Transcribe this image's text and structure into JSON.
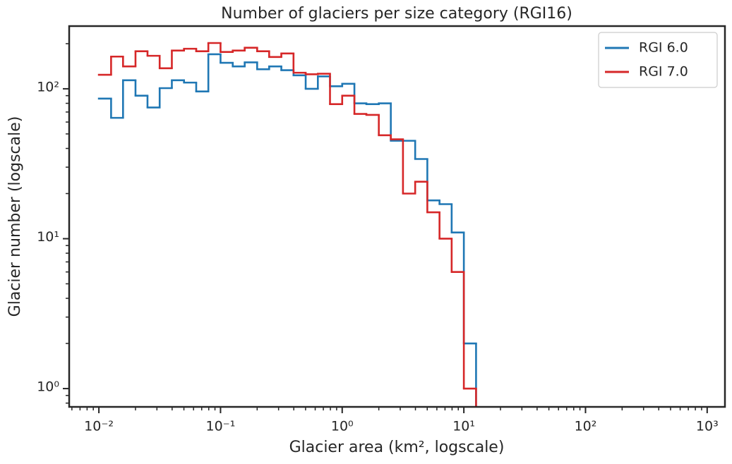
{
  "chart_data": {
    "type": "histogram",
    "title": "Number of glaciers per size category (RGI16)",
    "xlabel": "Glacier area (km², logscale)",
    "ylabel": "Glacier number (logscale)",
    "xscale": "log",
    "yscale": "log",
    "legend": "upper right",
    "bins": [
      0.01,
      0.0126,
      0.0158,
      0.02,
      0.0251,
      0.0316,
      0.0398,
      0.0501,
      0.0631,
      0.0794,
      0.1,
      0.126,
      0.158,
      0.2,
      0.251,
      0.316,
      0.398,
      0.501,
      0.631,
      0.794,
      1,
      1.26,
      1.58,
      2,
      2.51,
      3.16,
      3.98,
      5.01,
      6.31,
      7.94,
      10,
      12.6
    ],
    "series": [
      {
        "name": "RGI 6.0",
        "color": "#1f77b4",
        "values": [
          86,
          64,
          114,
          90,
          75,
          101,
          114,
          110,
          96,
          170,
          149,
          141,
          150,
          135,
          141,
          133,
          123,
          100,
          121,
          104,
          108,
          80,
          79,
          80,
          45,
          45,
          34,
          18,
          17,
          11,
          2
        ]
      },
      {
        "name": "RGI 7.0",
        "color": "#d62728",
        "values": [
          124,
          164,
          141,
          178,
          166,
          137,
          180,
          185,
          178,
          202,
          176,
          180,
          188,
          178,
          163,
          172,
          128,
          125,
          126,
          79,
          90,
          68,
          67,
          49,
          46,
          20,
          24,
          15,
          10,
          6,
          1
        ]
      }
    ],
    "xlim": [
      0.0057,
      1400
    ],
    "ylim": [
      0.755,
      262
    ],
    "xticks": [
      {
        "value": 0.01,
        "label": "10⁻²"
      },
      {
        "value": 0.1,
        "label": "10⁻¹"
      },
      {
        "value": 1,
        "label": "10⁰"
      },
      {
        "value": 10,
        "label": "10¹"
      },
      {
        "value": 100,
        "label": "10²"
      },
      {
        "value": 1000,
        "label": "10³"
      }
    ],
    "yticks": [
      {
        "value": 1,
        "label": "10⁰"
      },
      {
        "value": 10,
        "label": "10¹"
      },
      {
        "value": 100,
        "label": "10²"
      }
    ],
    "xminorticks": [
      0.006,
      0.007,
      0.008,
      0.009,
      0.02,
      0.03,
      0.04,
      0.05,
      0.06,
      0.07,
      0.08,
      0.09,
      0.2,
      0.3,
      0.4,
      0.5,
      0.6,
      0.7,
      0.8,
      0.9,
      2,
      3,
      4,
      5,
      6,
      7,
      8,
      9,
      20,
      30,
      40,
      50,
      60,
      70,
      80,
      90,
      200,
      300,
      400,
      500,
      600,
      700,
      800,
      900
    ],
    "yminorticks": [
      0.8,
      0.9,
      2,
      3,
      4,
      5,
      6,
      7,
      8,
      9,
      20,
      30,
      40,
      50,
      60,
      70,
      80,
      90,
      200
    ]
  }
}
